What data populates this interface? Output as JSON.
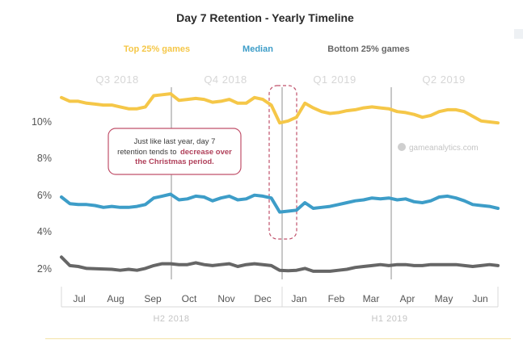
{
  "chart_data": {
    "type": "line",
    "title": "Day 7 Retention - Yearly Timeline",
    "legend": [
      {
        "name": "Top 25% games",
        "color": "#f5c748"
      },
      {
        "name": "Median",
        "color": "#3d9dc8"
      },
      {
        "name": "Bottom 25% games",
        "color": "#666666"
      }
    ],
    "legend_placement": "top",
    "quarters": [
      "Q3 2018",
      "Q4 2018",
      "Q1 2019",
      "Q2 2019"
    ],
    "month_labels": [
      "Jul",
      "Aug",
      "Sep",
      "Oct",
      "Nov",
      "Dec",
      "Jan",
      "Feb",
      "Mar",
      "Apr",
      "May",
      "Jun"
    ],
    "halves": [
      "H2 2018",
      "H1 2019"
    ],
    "y_ticks": [
      "2%",
      "4%",
      "6%",
      "8%",
      "10%"
    ],
    "ylim": [
      1.5,
      11.8
    ],
    "grid": false,
    "x": [
      "2018-07-01",
      "2018-07-08",
      "2018-07-15",
      "2018-07-22",
      "2018-07-29",
      "2018-08-05",
      "2018-08-12",
      "2018-08-19",
      "2018-08-26",
      "2018-09-02",
      "2018-09-09",
      "2018-09-16",
      "2018-09-23",
      "2018-09-30",
      "2018-10-07",
      "2018-10-14",
      "2018-10-21",
      "2018-10-28",
      "2018-11-04",
      "2018-11-11",
      "2018-11-18",
      "2018-11-25",
      "2018-12-02",
      "2018-12-09",
      "2018-12-16",
      "2018-12-23",
      "2018-12-30",
      "2019-01-06",
      "2019-01-13",
      "2019-01-20",
      "2019-01-27",
      "2019-02-03",
      "2019-02-10",
      "2019-02-17",
      "2019-02-24",
      "2019-03-03",
      "2019-03-10",
      "2019-03-17",
      "2019-03-24",
      "2019-03-31",
      "2019-04-07",
      "2019-04-14",
      "2019-04-21",
      "2019-04-28",
      "2019-05-05",
      "2019-05-12",
      "2019-05-19",
      "2019-05-26",
      "2019-06-02",
      "2019-06-09",
      "2019-06-16",
      "2019-06-23",
      "2019-06-30"
    ],
    "series": [
      {
        "name": "Top 25% games",
        "values": [
          11.1,
          10.9,
          10.9,
          10.8,
          10.75,
          10.7,
          10.7,
          10.6,
          10.5,
          10.5,
          10.6,
          11.2,
          11.25,
          11.3,
          10.95,
          11.0,
          11.05,
          11.0,
          10.85,
          10.9,
          11.0,
          10.8,
          10.8,
          11.1,
          11.0,
          10.7,
          9.75,
          9.85,
          10.05,
          10.8,
          10.55,
          10.35,
          10.25,
          10.3,
          10.4,
          10.45,
          10.55,
          10.6,
          10.55,
          10.5,
          10.35,
          10.3,
          10.2,
          10.05,
          10.15,
          10.35,
          10.45,
          10.45,
          10.35,
          10.1,
          9.85,
          9.8,
          9.75
        ]
      },
      {
        "name": "Median",
        "values": [
          5.8,
          5.45,
          5.4,
          5.4,
          5.35,
          5.25,
          5.3,
          5.25,
          5.25,
          5.3,
          5.4,
          5.75,
          5.85,
          5.95,
          5.65,
          5.7,
          5.85,
          5.8,
          5.6,
          5.75,
          5.85,
          5.65,
          5.7,
          5.9,
          5.85,
          5.75,
          5.0,
          5.05,
          5.1,
          5.5,
          5.2,
          5.25,
          5.3,
          5.4,
          5.5,
          5.6,
          5.65,
          5.75,
          5.7,
          5.75,
          5.65,
          5.7,
          5.55,
          5.5,
          5.6,
          5.8,
          5.85,
          5.75,
          5.6,
          5.4,
          5.35,
          5.3,
          5.2
        ]
      },
      {
        "name": "Bottom 25% games",
        "values": [
          2.6,
          2.15,
          2.1,
          2.0,
          1.98,
          1.97,
          1.95,
          1.9,
          1.95,
          1.9,
          2.0,
          2.15,
          2.25,
          2.25,
          2.2,
          2.2,
          2.3,
          2.2,
          2.15,
          2.2,
          2.25,
          2.1,
          2.2,
          2.25,
          2.2,
          2.15,
          1.9,
          1.88,
          1.9,
          2.0,
          1.85,
          1.85,
          1.85,
          1.9,
          1.95,
          2.05,
          2.1,
          2.15,
          2.2,
          2.15,
          2.2,
          2.2,
          2.15,
          2.15,
          2.2,
          2.2,
          2.2,
          2.2,
          2.15,
          2.1,
          2.15,
          2.2,
          2.15
        ]
      }
    ],
    "annotation": {
      "text_lines": [
        "Just like last year, day 7",
        "retention tends to"
      ],
      "highlight_inline": "decrease over",
      "highlight_line": "the Christmas period."
    },
    "watermark": "gameanalytics.com"
  }
}
